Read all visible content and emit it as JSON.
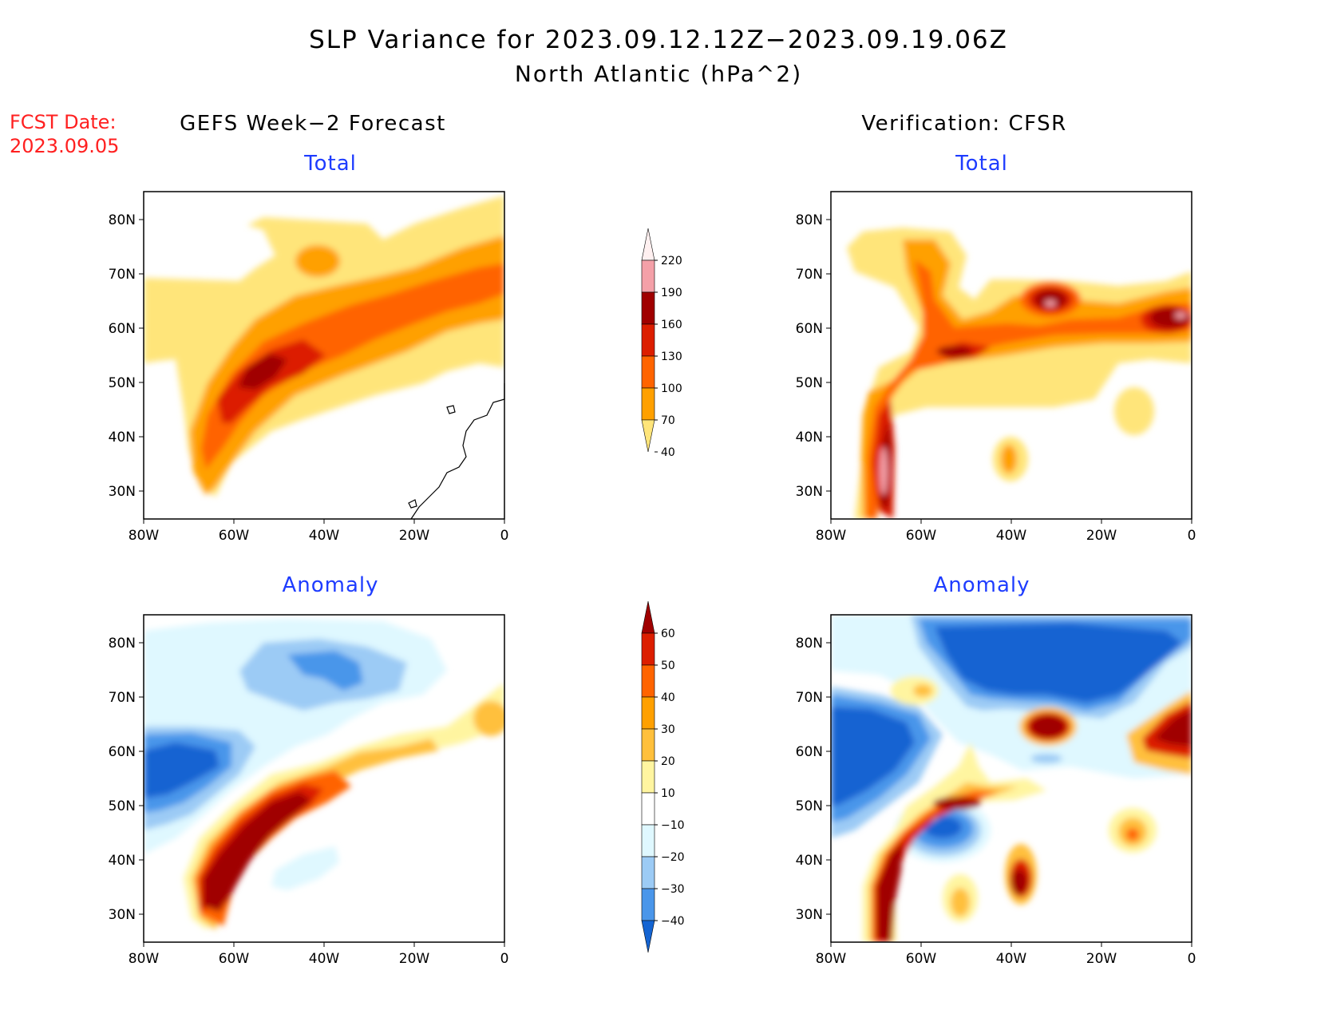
{
  "header": {
    "title": "SLP Variance for 2023.09.12.12Z−2023.09.19.06Z",
    "subtitle": "North Atlantic (hPa^2)",
    "fcst_label": "FCST Date:",
    "fcst_date": "2023.09.05"
  },
  "columns": {
    "left": "GEFS Week−2 Forecast",
    "right": "Verification: CFSR"
  },
  "panel_titles": {
    "top": "Total",
    "bottom": "Anomaly"
  },
  "map_axes": {
    "lat_labels": [
      "80N",
      "70N",
      "60N",
      "50N",
      "40N",
      "30N"
    ],
    "lon_labels": [
      "80W",
      "60W",
      "40W",
      "20W",
      "0"
    ]
  },
  "colorbars": {
    "total": {
      "labels": [
        "220",
        "190",
        "160",
        "130",
        "100",
        "70",
        "40"
      ],
      "colors": [
        "#fff0f0",
        "#f4a0a8",
        "#a00000",
        "#dc1e00",
        "#ff6400",
        "#ffa000",
        "#ffe57a"
      ]
    },
    "anomaly": {
      "labels": [
        "60",
        "50",
        "40",
        "30",
        "20",
        "10",
        "−10",
        "−20",
        "−30",
        "−40"
      ],
      "colors": [
        "#a00000",
        "#dc1e00",
        "#ff6400",
        "#ffa000",
        "#ffc03c",
        "#fff5a0",
        "#ffffff",
        "#dff8ff",
        "#9ccbf5",
        "#4a96ea",
        "#1464d2"
      ]
    }
  }
}
